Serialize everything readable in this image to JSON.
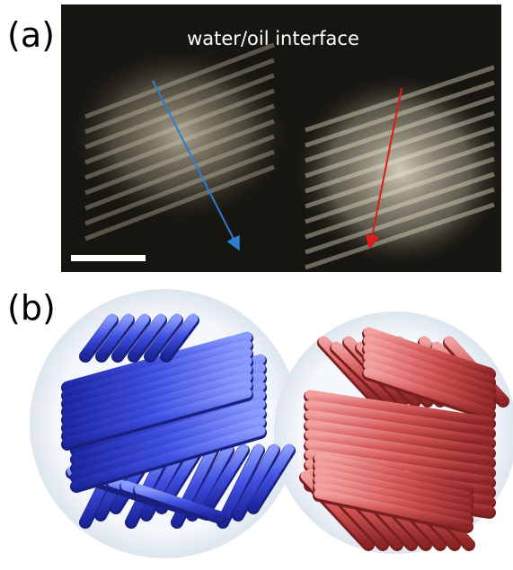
{
  "panels": [
    {
      "label": "(a)",
      "caption": "water/oil interface"
    },
    {
      "label": "(b)"
    }
  ]
}
